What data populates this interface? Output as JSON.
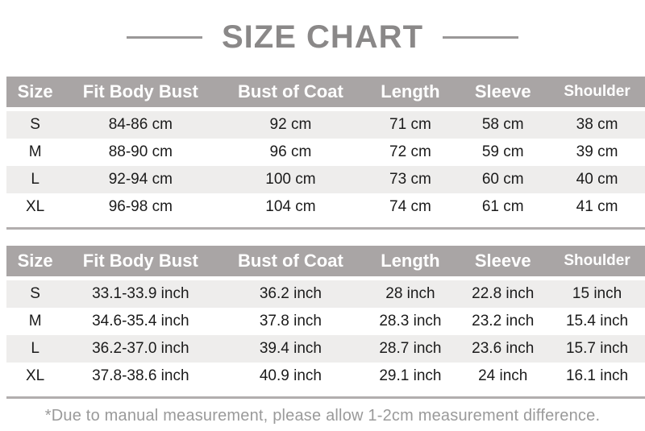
{
  "title": "SIZE CHART",
  "tables": {
    "cm": {
      "headers": [
        "Size",
        "Fit Body Bust",
        "Bust of Coat",
        "Length",
        "Sleeve",
        "Shoulder"
      ],
      "rows": [
        [
          "S",
          "84-86 cm",
          "92 cm",
          "71 cm",
          "58 cm",
          "38 cm"
        ],
        [
          "M",
          "88-90 cm",
          "96 cm",
          "72 cm",
          "59 cm",
          "39 cm"
        ],
        [
          "L",
          "92-94 cm",
          "100 cm",
          "73 cm",
          "60 cm",
          "40 cm"
        ],
        [
          "XL",
          "96-98 cm",
          "104 cm",
          "74 cm",
          "61 cm",
          "41 cm"
        ]
      ]
    },
    "inch": {
      "headers": [
        "Size",
        "Fit Body Bust",
        "Bust of Coat",
        "Length",
        "Sleeve",
        "Shoulder"
      ],
      "rows": [
        [
          "S",
          "33.1-33.9 inch",
          "36.2 inch",
          "28 inch",
          "22.8 inch",
          "15 inch"
        ],
        [
          "M",
          "34.6-35.4 inch",
          "37.8 inch",
          "28.3 inch",
          "23.2 inch",
          "15.4 inch"
        ],
        [
          "L",
          "36.2-37.0 inch",
          "39.4 inch",
          "28.7 inch",
          "23.6 inch",
          "15.7 inch"
        ],
        [
          "XL",
          "37.8-38.6 inch",
          "40.9 inch",
          "29.1 inch",
          "24 inch",
          "16.1 inch"
        ]
      ]
    }
  },
  "footer": {
    "note": "*Due to manual measurement, please allow 1-2cm measurement difference."
  },
  "colors": {
    "header_bg": "#a9a5a5",
    "row_alt_bg": "#eeedec",
    "title_color": "#8a8888",
    "rule_color": "#9a9898",
    "table_border": "#b2aeae",
    "footer_color": "#9a9a9a",
    "cell_text": "#1b1b1b"
  }
}
